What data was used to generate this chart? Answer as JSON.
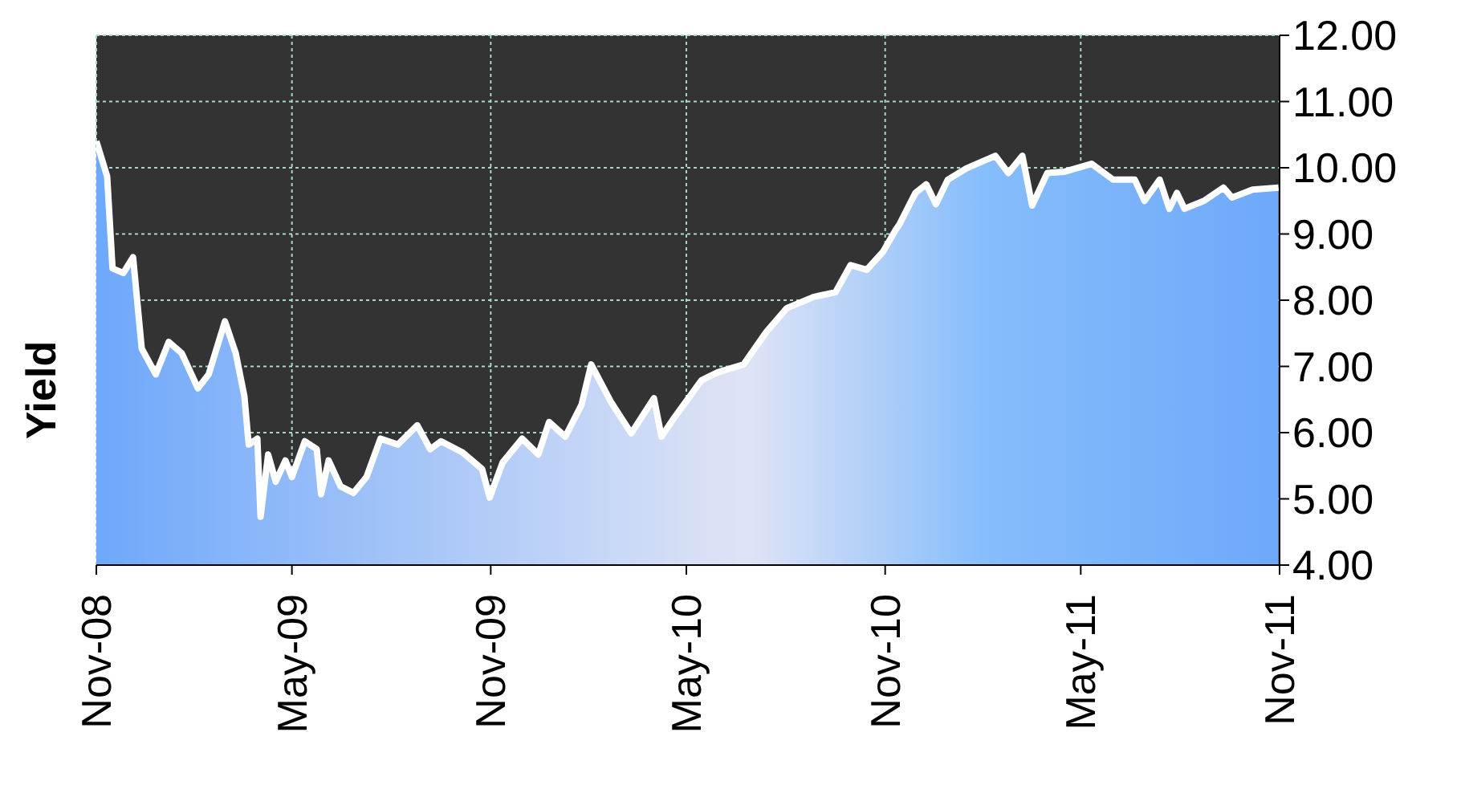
{
  "chart_data": {
    "type": "area",
    "ylabel": "Yield",
    "grid": true,
    "xlim": [
      "2008-11-01",
      "2011-11-01"
    ],
    "xticks": [
      {
        "value": "2008-11-01",
        "label": "Nov-08"
      },
      {
        "value": "2009-05-01",
        "label": "May-09"
      },
      {
        "value": "2009-11-01",
        "label": "Nov-09"
      },
      {
        "value": "2010-05-01",
        "label": "May-10"
      },
      {
        "value": "2010-11-01",
        "label": "Nov-10"
      },
      {
        "value": "2011-05-01",
        "label": "May-11"
      },
      {
        "value": "2011-11-01",
        "label": "Nov-11"
      }
    ],
    "ylim": [
      4,
      12
    ],
    "yticks": [
      {
        "value": 4,
        "label": "4.00"
      },
      {
        "value": 5,
        "label": "5.00"
      },
      {
        "value": 6,
        "label": "6.00"
      },
      {
        "value": 7,
        "label": "7.00"
      },
      {
        "value": 8,
        "label": "8.00"
      },
      {
        "value": 9,
        "label": "9.00"
      },
      {
        "value": 10,
        "label": "10.00"
      },
      {
        "value": 11,
        "label": "11.00"
      },
      {
        "value": 12,
        "label": "12.00"
      }
    ],
    "x": [
      "2008-11-01",
      "2008-11-11",
      "2008-11-16",
      "2008-11-26",
      "2008-12-05",
      "2008-12-13",
      "2008-12-26",
      "2009-01-07",
      "2009-01-19",
      "2009-02-03",
      "2009-02-13",
      "2009-02-28",
      "2009-03-10",
      "2009-03-18",
      "2009-03-22",
      "2009-03-30",
      "2009-04-02",
      "2009-04-09",
      "2009-04-16",
      "2009-04-25",
      "2009-05-01",
      "2009-05-13",
      "2009-05-24",
      "2009-05-28",
      "2009-06-04",
      "2009-06-15",
      "2009-06-27",
      "2009-07-09",
      "2009-07-22",
      "2009-08-07",
      "2009-08-25",
      "2009-09-06",
      "2009-09-16",
      "2009-10-06",
      "2009-10-24",
      "2009-10-31",
      "2009-11-12",
      "2009-11-30",
      "2009-12-15",
      "2009-12-25",
      "2010-01-09",
      "2010-01-24",
      "2010-02-02",
      "2010-02-20",
      "2010-03-11",
      "2010-04-01",
      "2010-04-08",
      "2010-04-20",
      "2010-05-15",
      "2010-05-30",
      "2010-06-23",
      "2010-07-14",
      "2010-08-02",
      "2010-08-27",
      "2010-09-16",
      "2010-09-30",
      "2010-10-15",
      "2010-10-30",
      "2010-11-11",
      "2010-11-14",
      "2010-11-29",
      "2010-12-09",
      "2010-12-18",
      "2010-12-29",
      "2011-01-15",
      "2011-02-11",
      "2011-02-23",
      "2011-03-08",
      "2011-03-17",
      "2011-03-31",
      "2011-04-16",
      "2011-05-11",
      "2011-05-31",
      "2011-06-20",
      "2011-06-29",
      "2011-07-13",
      "2011-07-22",
      "2011-07-29",
      "2011-08-05",
      "2011-08-23",
      "2011-09-10",
      "2011-09-18",
      "2011-10-07",
      "2011-10-31"
    ],
    "series": [
      {
        "color": "#6ea8fa",
        "values": [
          10.4,
          9.87,
          8.48,
          8.41,
          8.65,
          7.27,
          6.88,
          7.37,
          7.2,
          6.67,
          6.88,
          7.68,
          7.2,
          6.55,
          5.82,
          5.91,
          4.73,
          5.67,
          5.26,
          5.58,
          5.33,
          5.87,
          5.75,
          5.07,
          5.58,
          5.19,
          5.09,
          5.33,
          5.91,
          5.82,
          6.11,
          5.75,
          5.87,
          5.7,
          5.45,
          5.02,
          5.55,
          5.91,
          5.67,
          6.16,
          5.94,
          6.42,
          7.03,
          6.47,
          5.99,
          6.52,
          5.94,
          6.23,
          6.79,
          6.91,
          7.03,
          7.52,
          7.88,
          8.05,
          8.12,
          8.53,
          8.46,
          8.73,
          9.07,
          9.14,
          9.62,
          9.75,
          9.45,
          9.82,
          9.99,
          10.18,
          9.92,
          10.18,
          9.43,
          9.92,
          9.94,
          10.06,
          9.82,
          9.82,
          9.5,
          9.82,
          9.38,
          9.62,
          9.38,
          9.5,
          9.7,
          9.55,
          9.67,
          9.7
        ]
      }
    ]
  }
}
